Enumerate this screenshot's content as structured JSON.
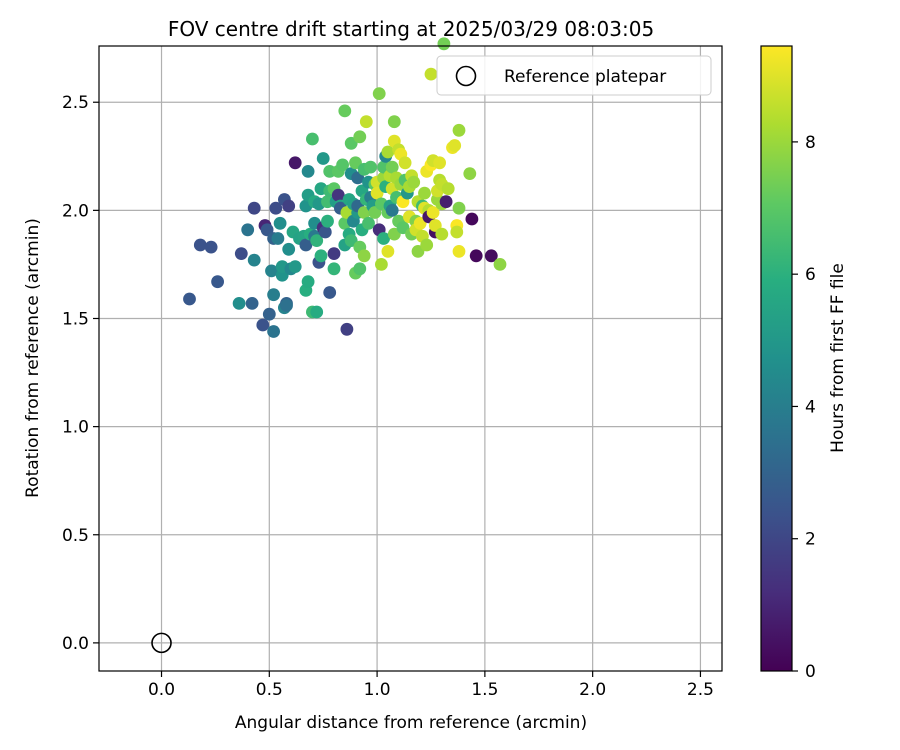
{
  "chart_data": {
    "type": "scatter",
    "title": "FOV centre drift starting at 2025/03/29 08:03:05",
    "xlabel": "Angular distance from reference (arcmin)",
    "ylabel": "Rotation from reference (arcmin)",
    "xlim": [
      -0.29,
      2.6
    ],
    "ylim": [
      -0.13,
      2.76
    ],
    "xticks": [
      "0.0",
      "0.5",
      "1.0",
      "1.5",
      "2.0",
      "2.5"
    ],
    "yticks": [
      "0.0",
      "0.5",
      "1.0",
      "1.5",
      "2.0",
      "2.5"
    ],
    "grid": true,
    "legend_placement": "upper right",
    "legend": [
      {
        "label": "Reference platepar"
      }
    ],
    "reference_point": {
      "x": 0.0,
      "y": 0.0
    },
    "colorbar": {
      "label": "Hours from first FF file",
      "ticks": [
        "0",
        "2",
        "4",
        "6",
        "8"
      ],
      "range": [
        0,
        9.45
      ],
      "colormap": "viridis"
    },
    "points": [
      [
        0.13,
        1.59,
        2.6
      ],
      [
        0.18,
        1.84,
        2.4
      ],
      [
        0.23,
        1.83,
        2.4
      ],
      [
        0.26,
        1.67,
        2.6
      ],
      [
        0.36,
        1.57,
        4.6
      ],
      [
        0.37,
        1.8,
        2.2
      ],
      [
        0.4,
        1.91,
        3.6
      ],
      [
        0.42,
        1.57,
        3.0
      ],
      [
        0.43,
        1.77,
        4.2
      ],
      [
        0.43,
        2.01,
        2.0
      ],
      [
        0.47,
        1.47,
        2.4
      ],
      [
        0.48,
        1.93,
        1.0
      ],
      [
        0.49,
        1.91,
        2.6
      ],
      [
        0.5,
        1.52,
        2.9
      ],
      [
        0.51,
        1.72,
        4.2
      ],
      [
        0.52,
        1.87,
        2.9
      ],
      [
        0.52,
        1.44,
        3.6
      ],
      [
        0.52,
        1.61,
        4.0
      ],
      [
        0.53,
        2.01,
        2.2
      ],
      [
        0.54,
        1.87,
        3.9
      ],
      [
        0.55,
        1.94,
        4.6
      ],
      [
        0.56,
        1.7,
        4.8
      ],
      [
        0.56,
        1.74,
        5.0
      ],
      [
        0.57,
        2.05,
        2.4
      ],
      [
        0.57,
        1.55,
        4.2
      ],
      [
        0.58,
        1.57,
        3.0
      ],
      [
        0.58,
        1.56,
        3.5
      ],
      [
        0.59,
        1.82,
        4.6
      ],
      [
        0.59,
        2.02,
        1.8
      ],
      [
        0.6,
        1.73,
        4.4
      ],
      [
        0.61,
        1.9,
        5.6
      ],
      [
        0.62,
        1.74,
        5.0
      ],
      [
        0.62,
        2.22,
        0.6
      ],
      [
        0.64,
        1.87,
        5.4
      ],
      [
        0.66,
        1.88,
        5.5
      ],
      [
        0.67,
        2.02,
        4.8
      ],
      [
        0.67,
        1.63,
        5.9
      ],
      [
        0.67,
        1.84,
        2.8
      ],
      [
        0.68,
        1.67,
        5.8
      ],
      [
        0.68,
        2.07,
        5.2
      ],
      [
        0.68,
        2.18,
        4.4
      ],
      [
        0.69,
        1.89,
        5.9
      ],
      [
        0.7,
        2.33,
        6.6
      ],
      [
        0.7,
        1.53,
        6.4
      ],
      [
        0.71,
        1.94,
        4.6
      ],
      [
        0.71,
        2.04,
        5.7
      ],
      [
        0.71,
        1.88,
        3.8
      ],
      [
        0.72,
        1.53,
        5.8
      ],
      [
        0.72,
        1.86,
        6.1
      ],
      [
        0.73,
        1.76,
        2.4
      ],
      [
        0.73,
        2.03,
        5.0
      ],
      [
        0.74,
        1.79,
        6.0
      ],
      [
        0.74,
        2.1,
        5.6
      ],
      [
        0.75,
        2.24,
        5.0
      ],
      [
        0.75,
        1.92,
        1.3
      ],
      [
        0.76,
        1.9,
        2.5
      ],
      [
        0.77,
        2.04,
        6.5
      ],
      [
        0.77,
        1.95,
        6.0
      ],
      [
        0.78,
        2.09,
        6.4
      ],
      [
        0.78,
        2.18,
        6.8
      ],
      [
        0.78,
        1.62,
        2.6
      ],
      [
        0.8,
        2.1,
        7.0
      ],
      [
        0.8,
        1.8,
        1.6
      ],
      [
        0.8,
        1.73,
        6.2
      ],
      [
        0.81,
        2.04,
        5.2
      ],
      [
        0.82,
        2.18,
        7.0
      ],
      [
        0.82,
        2.07,
        1.4
      ],
      [
        0.83,
        2.02,
        5.6
      ],
      [
        0.83,
        2.01,
        2.8
      ],
      [
        0.84,
        2.21,
        6.9
      ],
      [
        0.85,
        2.46,
        7.2
      ],
      [
        0.85,
        1.84,
        5.4
      ],
      [
        0.85,
        1.94,
        7.0
      ],
      [
        0.86,
        1.45,
        1.8
      ],
      [
        0.86,
        1.99,
        8.2
      ],
      [
        0.87,
        1.89,
        5.8
      ],
      [
        0.87,
        2.05,
        5.6
      ],
      [
        0.88,
        1.86,
        6.4
      ],
      [
        0.88,
        2.31,
        7.0
      ],
      [
        0.88,
        2.17,
        4.6
      ],
      [
        0.89,
        2.03,
        5.4
      ],
      [
        0.89,
        1.95,
        4.4
      ],
      [
        0.9,
        2.22,
        7.2
      ],
      [
        0.9,
        1.71,
        7.2
      ],
      [
        0.91,
        2.15,
        3.4
      ],
      [
        0.91,
        1.99,
        5.0
      ],
      [
        0.91,
        2.02,
        3.2
      ],
      [
        0.92,
        2.34,
        7.4
      ],
      [
        0.92,
        1.83,
        7.2
      ],
      [
        0.92,
        1.73,
        6.8
      ],
      [
        0.93,
        2.09,
        5.6
      ],
      [
        0.93,
        1.91,
        5.9
      ],
      [
        0.94,
        2.19,
        6.6
      ],
      [
        0.94,
        1.99,
        7.6
      ],
      [
        0.94,
        1.79,
        7.8
      ],
      [
        0.95,
        2.41,
        8.6
      ],
      [
        0.95,
        2.05,
        6.2
      ],
      [
        0.96,
        2.13,
        4.8
      ],
      [
        0.96,
        1.94,
        6.6
      ],
      [
        0.97,
        2.06,
        4.0
      ],
      [
        0.97,
        2.2,
        6.8
      ],
      [
        0.98,
        2.02,
        5.2
      ],
      [
        0.99,
        2.12,
        7.0
      ],
      [
        0.99,
        1.99,
        7.4
      ],
      [
        1.0,
        2.13,
        8.8
      ],
      [
        1.0,
        2.08,
        9.0
      ],
      [
        1.01,
        2.54,
        7.6
      ],
      [
        1.01,
        1.91,
        1.2
      ],
      [
        1.02,
        2.03,
        7.0
      ],
      [
        1.02,
        1.75,
        8.2
      ],
      [
        1.03,
        2.15,
        8.0
      ],
      [
        1.03,
        2.2,
        6.8
      ],
      [
        1.03,
        1.87,
        6.0
      ],
      [
        1.04,
        2.11,
        6.0
      ],
      [
        1.04,
        2.25,
        4.4
      ],
      [
        1.05,
        2.27,
        8.2
      ],
      [
        1.05,
        1.99,
        7.2
      ],
      [
        1.05,
        1.81,
        9.0
      ],
      [
        1.06,
        2.16,
        8.4
      ],
      [
        1.06,
        2.02,
        5.4
      ],
      [
        1.07,
        2.1,
        8.8
      ],
      [
        1.07,
        2.2,
        7.4
      ],
      [
        1.07,
        2.0,
        3.8
      ],
      [
        1.08,
        2.32,
        9.0
      ],
      [
        1.08,
        2.41,
        7.6
      ],
      [
        1.08,
        1.89,
        7.6
      ],
      [
        1.09,
        2.15,
        8.2
      ],
      [
        1.09,
        2.06,
        6.6
      ],
      [
        1.1,
        2.28,
        8.6
      ],
      [
        1.1,
        1.95,
        7.2
      ],
      [
        1.11,
        2.12,
        8.0
      ],
      [
        1.11,
        2.26,
        9.2
      ],
      [
        1.12,
        2.04,
        9.4
      ],
      [
        1.12,
        1.92,
        7.0
      ],
      [
        1.13,
        2.14,
        6.8
      ],
      [
        1.13,
        2.22,
        8.8
      ],
      [
        1.14,
        2.08,
        5.0
      ],
      [
        1.15,
        1.97,
        9.0
      ],
      [
        1.15,
        2.11,
        8.2
      ],
      [
        1.16,
        1.89,
        7.4
      ],
      [
        1.16,
        2.16,
        8.6
      ],
      [
        1.17,
        2.13,
        8.0
      ],
      [
        1.18,
        1.95,
        7.6
      ],
      [
        1.18,
        1.91,
        8.8
      ],
      [
        1.19,
        2.04,
        8.4
      ],
      [
        1.19,
        1.81,
        7.8
      ],
      [
        1.2,
        1.94,
        9.2
      ],
      [
        1.21,
        2.02,
        6.4
      ],
      [
        1.21,
        1.88,
        8.6
      ],
      [
        1.22,
        2.01,
        9.0
      ],
      [
        1.22,
        2.08,
        8.0
      ],
      [
        1.23,
        2.18,
        9.2
      ],
      [
        1.23,
        1.84,
        8.0
      ],
      [
        1.24,
        2.0,
        8.4
      ],
      [
        1.24,
        1.97,
        0.6
      ],
      [
        1.25,
        2.21,
        9.4
      ],
      [
        1.25,
        2.63,
        8.6
      ],
      [
        1.26,
        1.99,
        9.2
      ],
      [
        1.26,
        2.23,
        8.8
      ],
      [
        1.27,
        1.9,
        0.4
      ],
      [
        1.27,
        1.93,
        9.0
      ],
      [
        1.28,
        2.05,
        8.0
      ],
      [
        1.28,
        2.09,
        8.8
      ],
      [
        1.29,
        2.22,
        9.0
      ],
      [
        1.29,
        2.14,
        8.4
      ],
      [
        1.3,
        2.12,
        8.6
      ],
      [
        1.3,
        2.03,
        8.0
      ],
      [
        1.3,
        1.89,
        8.4
      ],
      [
        1.31,
        2.77,
        7.4
      ],
      [
        1.32,
        2.04,
        0.8
      ],
      [
        1.33,
        2.1,
        8.4
      ],
      [
        1.35,
        2.29,
        9.2
      ],
      [
        1.36,
        2.3,
        9.0
      ],
      [
        1.37,
        1.93,
        9.4
      ],
      [
        1.37,
        1.9,
        8.6
      ],
      [
        1.38,
        2.37,
        8.0
      ],
      [
        1.38,
        2.01,
        7.6
      ],
      [
        1.38,
        1.81,
        9.2
      ],
      [
        1.43,
        2.17,
        7.8
      ],
      [
        1.44,
        1.96,
        0.2
      ],
      [
        1.46,
        1.79,
        0.2
      ],
      [
        1.53,
        1.79,
        0.3
      ],
      [
        1.57,
        1.75,
        7.8
      ]
    ]
  }
}
